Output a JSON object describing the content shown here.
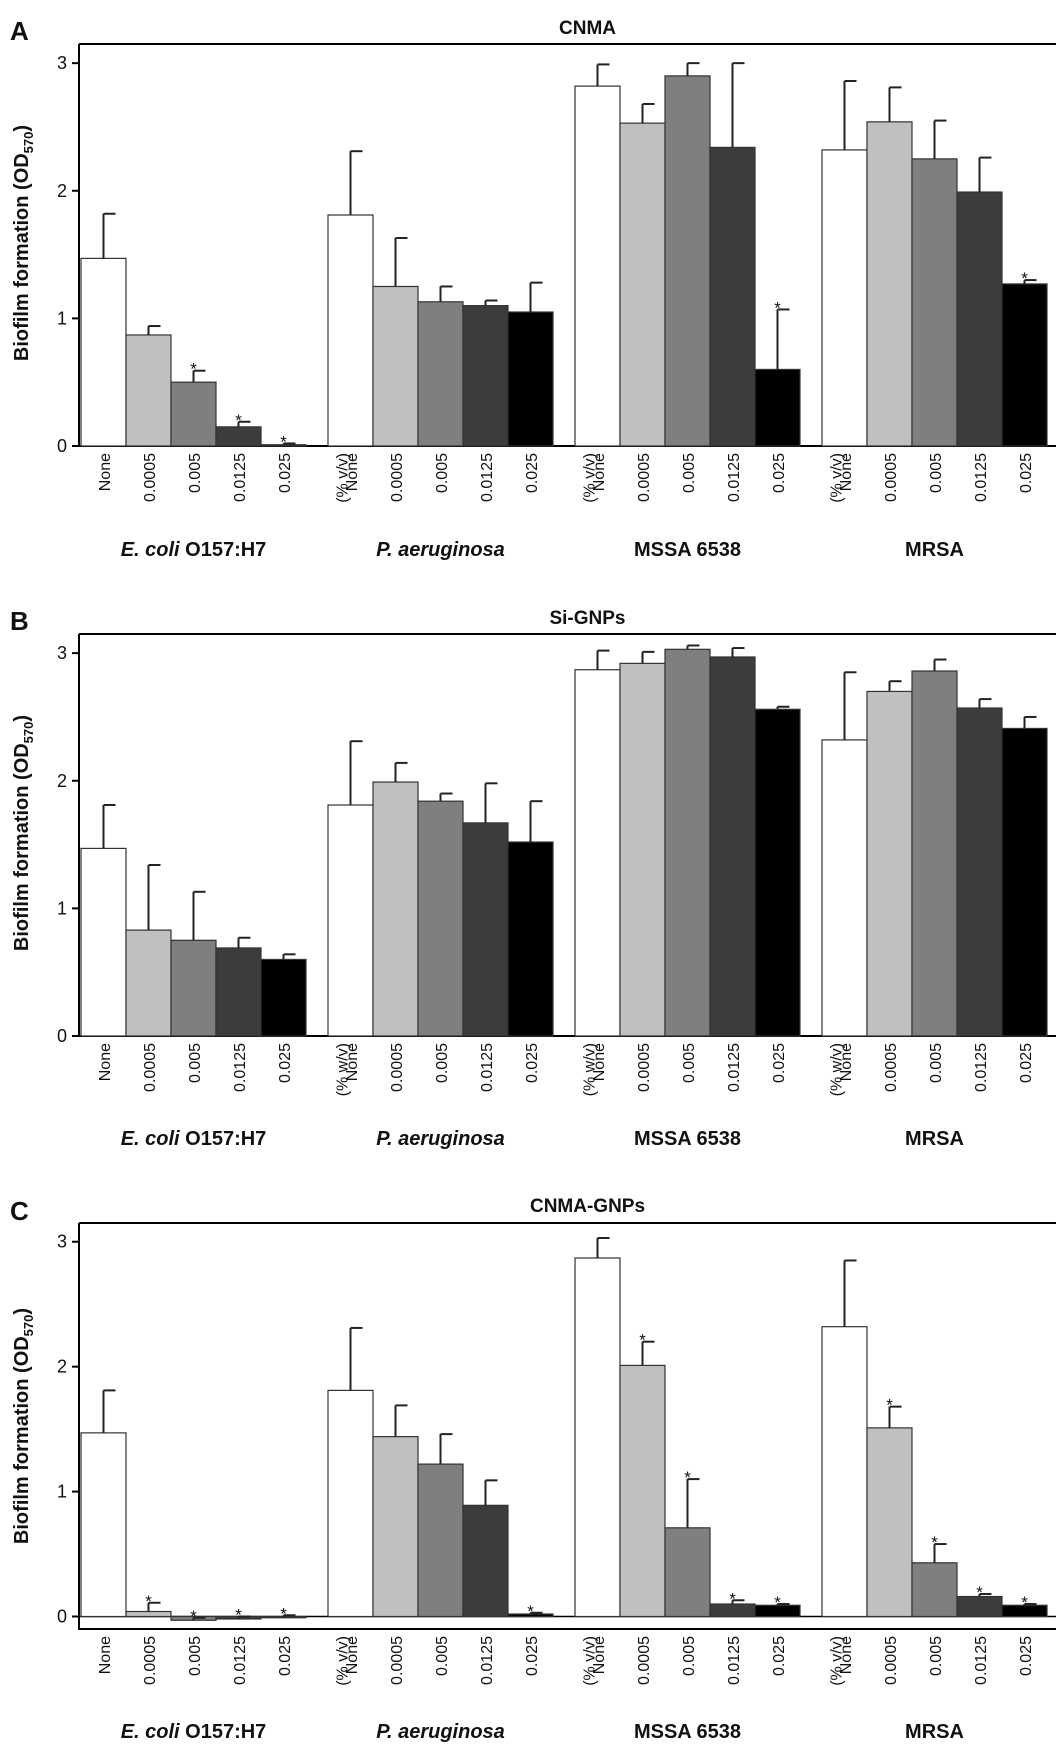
{
  "colors": [
    "#ffffff",
    "#c0c0c0",
    "#7f7f7f",
    "#3c3c3c",
    "#000000"
  ],
  "chart_data": [
    {
      "type": "bar",
      "panel": "A",
      "title": "CNMA",
      "ylabel": "Biofilm formation (OD570)",
      "ylim": [
        0,
        3.15
      ],
      "yticks": [
        "0",
        "1",
        "2",
        "3"
      ],
      "categories": [
        "None",
        "0.0005",
        "0.005",
        "0.0125",
        "0.025"
      ],
      "unit_label": "(% v/v)",
      "groups": [
        {
          "name": "E. coli O157:H7",
          "values": [
            1.47,
            0.87,
            0.5,
            0.15,
            0.01
          ],
          "errors": [
            0.35,
            0.07,
            0.09,
            0.04,
            0.01
          ],
          "significant": [
            false,
            false,
            true,
            true,
            true
          ]
        },
        {
          "name": "P. aeruginosa",
          "values": [
            1.81,
            1.25,
            1.13,
            1.1,
            1.05
          ],
          "errors": [
            0.5,
            0.38,
            0.12,
            0.04,
            0.23
          ],
          "significant": [
            false,
            false,
            false,
            false,
            false
          ]
        },
        {
          "name": "MSSA 6538",
          "values": [
            2.82,
            2.53,
            2.9,
            2.34,
            0.6
          ],
          "errors": [
            0.17,
            0.15,
            0.1,
            0.66,
            0.47
          ],
          "significant": [
            false,
            false,
            false,
            false,
            true
          ]
        },
        {
          "name": "MRSA",
          "values": [
            2.32,
            2.54,
            2.25,
            1.99,
            1.27
          ],
          "errors": [
            0.54,
            0.27,
            0.3,
            0.27,
            0.03
          ],
          "significant": [
            false,
            false,
            false,
            false,
            true
          ]
        }
      ]
    },
    {
      "type": "bar",
      "panel": "B",
      "title": "Si-GNPs",
      "ylabel": "Biofilm formation (OD570)",
      "ylim": [
        0,
        3.15
      ],
      "yticks": [
        "0",
        "1",
        "2",
        "3"
      ],
      "categories": [
        "None",
        "0.0005",
        "0.005",
        "0.0125",
        "0.025"
      ],
      "unit_label": "(% w/v)",
      "groups": [
        {
          "name": "E. coli O157:H7",
          "values": [
            1.47,
            0.83,
            0.75,
            0.69,
            0.6
          ],
          "errors": [
            0.34,
            0.51,
            0.38,
            0.08,
            0.04
          ],
          "significant": [
            false,
            false,
            false,
            false,
            false
          ]
        },
        {
          "name": "P. aeruginosa",
          "values": [
            1.81,
            1.99,
            1.84,
            1.67,
            1.52
          ],
          "errors": [
            0.5,
            0.15,
            0.06,
            0.31,
            0.32
          ],
          "significant": [
            false,
            false,
            false,
            false,
            false
          ]
        },
        {
          "name": "MSSA 6538",
          "values": [
            2.87,
            2.92,
            3.03,
            2.97,
            2.56
          ],
          "errors": [
            0.15,
            0.09,
            0.03,
            0.07,
            0.02
          ],
          "significant": [
            false,
            false,
            false,
            false,
            false
          ]
        },
        {
          "name": "MRSA",
          "values": [
            2.32,
            2.7,
            2.86,
            2.57,
            2.41
          ],
          "errors": [
            0.53,
            0.08,
            0.09,
            0.07,
            0.09
          ],
          "significant": [
            false,
            false,
            false,
            false,
            false
          ]
        }
      ]
    },
    {
      "type": "bar",
      "panel": "C",
      "title": "CNMA-GNPs",
      "ylabel": "Biofilm formation (OD570)",
      "ylim": [
        -0.1,
        3.15
      ],
      "yticks": [
        "0",
        "1",
        "2",
        "3"
      ],
      "categories": [
        "None",
        "0.0005",
        "0.005",
        "0.0125",
        "0.025"
      ],
      "unit_label": "(% v/v)",
      "groups": [
        {
          "name": "E. coli O157:H7",
          "values": [
            1.47,
            0.04,
            -0.03,
            -0.02,
            -0.01
          ],
          "errors": [
            0.34,
            0.07,
            0.02,
            0.02,
            0.02
          ],
          "significant": [
            false,
            true,
            true,
            true,
            true
          ]
        },
        {
          "name": "P. aeruginosa",
          "values": [
            1.81,
            1.44,
            1.22,
            0.89,
            0.02
          ],
          "errors": [
            0.5,
            0.25,
            0.24,
            0.2,
            0.01
          ],
          "significant": [
            false,
            false,
            false,
            false,
            true
          ]
        },
        {
          "name": "MSSA 6538",
          "values": [
            2.87,
            2.01,
            0.71,
            0.1,
            0.09
          ],
          "errors": [
            0.16,
            0.19,
            0.39,
            0.03,
            0.01
          ],
          "significant": [
            false,
            true,
            true,
            true,
            true
          ]
        },
        {
          "name": "MRSA",
          "values": [
            2.32,
            1.51,
            0.43,
            0.16,
            0.09
          ],
          "errors": [
            0.53,
            0.17,
            0.15,
            0.02,
            0.01
          ],
          "significant": [
            false,
            true,
            true,
            true,
            true
          ]
        }
      ]
    }
  ]
}
